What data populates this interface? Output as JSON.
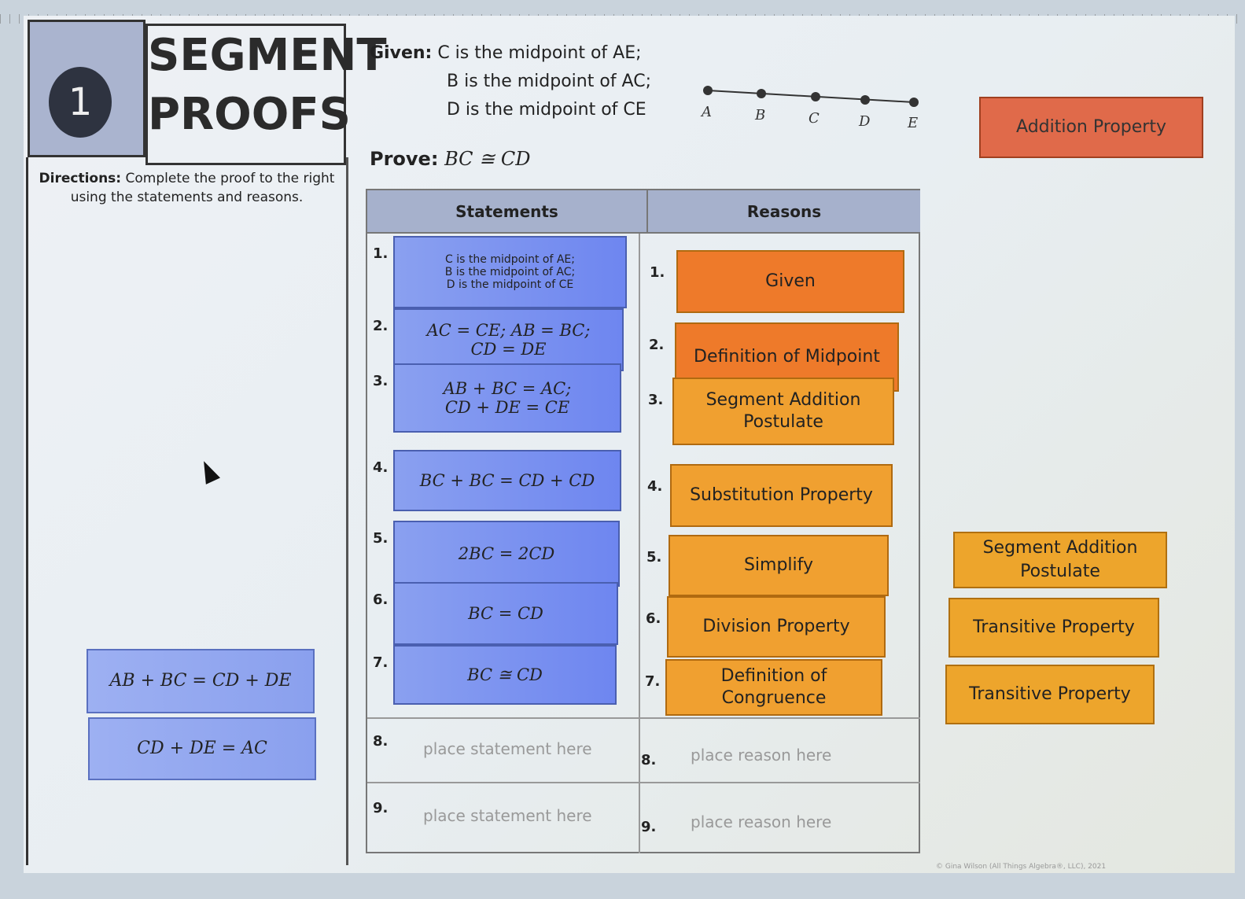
{
  "header": {
    "number": "1",
    "title_line1": "SEGMENT",
    "title_line2": "PROOFS",
    "directions_label": "Directions:",
    "directions_text": " Complete the proof to the right using the statements and reasons."
  },
  "given": {
    "label": "Given:",
    "lines": [
      "C is the midpoint of AE;",
      "B is the midpoint of AC;",
      "D is the midpoint of CE"
    ]
  },
  "prove": {
    "label": "Prove:",
    "text": "BC ≅ CD"
  },
  "diagram": {
    "points": [
      "A",
      "B",
      "C",
      "D",
      "E"
    ]
  },
  "table": {
    "headers": {
      "statements": "Statements",
      "reasons": "Reasons"
    },
    "rows": [
      {
        "n": "1.",
        "statement": [
          "C is the midpoint of AE;",
          "B is the midpoint of AC;",
          "D is the midpoint of CE"
        ],
        "n2": "1.",
        "reason": "Given"
      },
      {
        "n": "2.",
        "statement": [
          "AC = CE; AB = BC;",
          "CD = DE"
        ],
        "n2": "2.",
        "reason": "Definition of Midpoint"
      },
      {
        "n": "3.",
        "statement": [
          "AB + BC = AC;",
          "CD + DE = CE"
        ],
        "n2": "3.",
        "reason": "Segment Addition Postulate"
      },
      {
        "n": "4.",
        "statement": [
          "BC + BC = CD + CD"
        ],
        "n2": "4.",
        "reason": "Substitution Property"
      },
      {
        "n": "5.",
        "statement": [
          "2BC = 2CD"
        ],
        "n2": "5.",
        "reason": "Simplify"
      },
      {
        "n": "6.",
        "statement": [
          "BC = CD"
        ],
        "n2": "6.",
        "reason": "Division Property"
      },
      {
        "n": "7.",
        "statement": [
          "BC ≅ CD"
        ],
        "n2": "7.",
        "reason": "Definition of Congruence"
      },
      {
        "n": "8.",
        "statement": "place statement here",
        "n2": "8.",
        "reason": "place reason here"
      },
      {
        "n": "9.",
        "statement": "place statement here",
        "n2": "9.",
        "reason": "place reason here"
      }
    ]
  },
  "statement_bank": [
    "AB + BC = CD + DE",
    "CD + DE = AC"
  ],
  "reason_bank": [
    "Addition Property",
    "Segment Addition Postulate",
    "Transitive Property",
    "Transitive Property"
  ],
  "footer": "© Gina Wilson (All Things Algebra®, LLC), 2021",
  "colors": {
    "statement": "#7a90f0",
    "reason": "#f0a030",
    "reason_dark": "#ee7a2a",
    "addition_card": "#e06a4a",
    "header_box": "#aab4cf"
  }
}
